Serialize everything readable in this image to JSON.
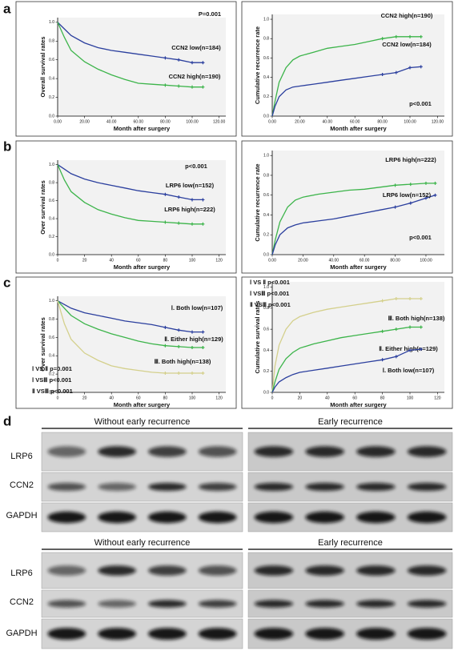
{
  "panel_labels": [
    "a",
    "b",
    "c",
    "d"
  ],
  "chart_data": [
    {
      "type": "line",
      "ylabel": "Overall survival rates",
      "xlabel": "Month after surgery",
      "annotations": [
        "P=0.001"
      ],
      "x": [
        0,
        5,
        10,
        20,
        30,
        40,
        50,
        60,
        70,
        80,
        90,
        100,
        108
      ],
      "series": [
        {
          "name": "CCN2 low(n=184)",
          "color": "#2b3f9e",
          "values": [
            1,
            0.93,
            0.86,
            0.78,
            0.73,
            0.7,
            0.68,
            0.66,
            0.64,
            0.62,
            0.6,
            0.57,
            0.57
          ]
        },
        {
          "name": "CCN2 high(n=190)",
          "color": "#3cb44a",
          "values": [
            1,
            0.84,
            0.7,
            0.58,
            0.5,
            0.44,
            0.39,
            0.35,
            0.34,
            0.33,
            0.32,
            0.31,
            0.31
          ]
        }
      ],
      "xlim": [
        0,
        125
      ],
      "xticks": [
        {
          "value": 0,
          "label": "0.00"
        },
        {
          "value": 20,
          "label": "20.00"
        },
        {
          "value": 40,
          "label": "40.00"
        },
        {
          "value": 60,
          "label": "60.00"
        },
        {
          "value": 80,
          "label": "80.00"
        },
        {
          "value": 100,
          "label": "100.00"
        },
        {
          "value": 120,
          "label": "120.00"
        }
      ],
      "ylim": [
        0,
        1.05
      ],
      "yticks": [
        {
          "value": 0,
          "label": "0.0"
        },
        {
          "value": 0.2,
          "label": "0.2"
        },
        {
          "value": 0.4,
          "label": "0.4"
        },
        {
          "value": 0.6,
          "label": "0.6"
        },
        {
          "value": 0.8,
          "label": "0.8"
        },
        {
          "value": 1,
          "label": "1.0"
        }
      ]
    },
    {
      "type": "line",
      "ylabel": "Cumulative recurrence rate",
      "xlabel": "Month after surgery",
      "annotations": [
        "p<0.001"
      ],
      "x": [
        0,
        2,
        5,
        10,
        15,
        20,
        30,
        40,
        50,
        60,
        70,
        80,
        90,
        100,
        108
      ],
      "series": [
        {
          "name": "CCN2 high(n=190)",
          "color": "#3cb44a",
          "values": [
            0,
            0.15,
            0.35,
            0.5,
            0.58,
            0.62,
            0.66,
            0.7,
            0.72,
            0.74,
            0.77,
            0.8,
            0.82,
            0.82,
            0.82
          ]
        },
        {
          "name": "CCN2 low(n=184)",
          "color": "#2b3f9e",
          "values": [
            0,
            0.1,
            0.2,
            0.27,
            0.3,
            0.31,
            0.33,
            0.35,
            0.37,
            0.39,
            0.41,
            0.43,
            0.45,
            0.5,
            0.51
          ]
        }
      ],
      "xlim": [
        0,
        125
      ],
      "xticks": [
        {
          "value": 0,
          "label": "0.00"
        },
        {
          "value": 20,
          "label": "20.00"
        },
        {
          "value": 40,
          "label": "40.00"
        },
        {
          "value": 60,
          "label": "60.00"
        },
        {
          "value": 80,
          "label": "80.00"
        },
        {
          "value": 100,
          "label": "100.00"
        },
        {
          "value": 120,
          "label": "120.00"
        }
      ],
      "ylim": [
        0,
        1.05
      ],
      "yticks": [
        {
          "value": 0,
          "label": "0.0"
        },
        {
          "value": 0.2,
          "label": "0.2"
        },
        {
          "value": 0.4,
          "label": "0.4"
        },
        {
          "value": 0.6,
          "label": "0.6"
        },
        {
          "value": 0.8,
          "label": "0.8"
        },
        {
          "value": 1,
          "label": "1.0"
        }
      ]
    },
    {
      "type": "line",
      "ylabel": "Over survival rates",
      "xlabel": "Month after surgery",
      "annotations": [
        "p<0.001"
      ],
      "x": [
        0,
        5,
        10,
        20,
        30,
        40,
        50,
        60,
        70,
        80,
        90,
        100,
        108
      ],
      "series": [
        {
          "name": "LRP6 low(n=152)",
          "color": "#2b3f9e",
          "values": [
            1,
            0.95,
            0.9,
            0.84,
            0.8,
            0.77,
            0.74,
            0.71,
            0.69,
            0.67,
            0.64,
            0.61,
            0.61
          ]
        },
        {
          "name": "LRP6 high(n=222)",
          "color": "#3cb44a",
          "values": [
            1,
            0.83,
            0.7,
            0.58,
            0.5,
            0.45,
            0.41,
            0.38,
            0.37,
            0.36,
            0.35,
            0.34,
            0.34
          ]
        }
      ],
      "xlim": [
        0,
        125
      ],
      "xticks": [
        0,
        20,
        40,
        60,
        80,
        100,
        120
      ],
      "ylim": [
        0,
        1.05
      ],
      "yticks": [
        {
          "value": 0,
          "label": "0.0"
        },
        {
          "value": 0.2,
          "label": "0.2"
        },
        {
          "value": 0.4,
          "label": "0.4"
        },
        {
          "value": 0.6,
          "label": "0.6"
        },
        {
          "value": 0.8,
          "label": "0.8"
        },
        {
          "value": 1,
          "label": "1.0"
        }
      ]
    },
    {
      "type": "line",
      "ylabel": "Cumulative recurrence rate",
      "xlabel": "Month after surgery",
      "annotations": [
        "p<0.001"
      ],
      "x": [
        0,
        2,
        5,
        10,
        15,
        20,
        30,
        40,
        50,
        60,
        70,
        80,
        90,
        100,
        106
      ],
      "series": [
        {
          "name": "LRP6 high(n=222)",
          "color": "#3cb44a",
          "values": [
            0,
            0.15,
            0.33,
            0.48,
            0.55,
            0.58,
            0.61,
            0.63,
            0.65,
            0.66,
            0.68,
            0.7,
            0.71,
            0.72,
            0.72
          ]
        },
        {
          "name": "LRP6 low(n=152)",
          "color": "#2b3f9e",
          "values": [
            0,
            0.1,
            0.2,
            0.27,
            0.3,
            0.32,
            0.34,
            0.36,
            0.39,
            0.42,
            0.45,
            0.48,
            0.52,
            0.57,
            0.6
          ]
        }
      ],
      "xlim": [
        0,
        112
      ],
      "xticks": [
        {
          "value": 0,
          "label": "0.00"
        },
        {
          "value": 20,
          "label": "20.00"
        },
        {
          "value": 40,
          "label": "40.00"
        },
        {
          "value": 60,
          "label": "60.00"
        },
        {
          "value": 80,
          "label": "80.00"
        },
        {
          "value": 100,
          "label": "100.00"
        }
      ],
      "ylim": [
        0,
        1.05
      ],
      "yticks": [
        {
          "value": 0,
          "label": "0.0"
        },
        {
          "value": 0.2,
          "label": "0.2"
        },
        {
          "value": 0.4,
          "label": "0.4"
        },
        {
          "value": 0.6,
          "label": "0.6"
        },
        {
          "value": 0.8,
          "label": "0.8"
        },
        {
          "value": 1,
          "label": "1.0"
        }
      ]
    },
    {
      "type": "line",
      "ylabel": "Over survival rates",
      "xlabel": "Month after surgery",
      "annotations": [
        "Ⅰ VS Ⅱ  p=0.001",
        "Ⅰ VSⅢ  p<0.001",
        "Ⅱ VSⅢ  p<0.001"
      ],
      "x": [
        0,
        5,
        10,
        20,
        30,
        40,
        50,
        60,
        70,
        80,
        90,
        100,
        108
      ],
      "series": [
        {
          "name": "Ⅰ. Both low(n=107)",
          "color": "#2b3f9e",
          "values": [
            1,
            0.96,
            0.92,
            0.87,
            0.84,
            0.81,
            0.78,
            0.76,
            0.74,
            0.71,
            0.68,
            0.66,
            0.66
          ]
        },
        {
          "name": "Ⅱ. Either high(n=129)",
          "color": "#3cb44a",
          "values": [
            1,
            0.92,
            0.84,
            0.75,
            0.69,
            0.64,
            0.6,
            0.56,
            0.53,
            0.51,
            0.5,
            0.49,
            0.49
          ]
        },
        {
          "name": "Ⅲ. Both high(n=138)",
          "color": "#d4d08c",
          "values": [
            1,
            0.75,
            0.58,
            0.43,
            0.35,
            0.29,
            0.26,
            0.24,
            0.22,
            0.21,
            0.21,
            0.21,
            0.21
          ]
        }
      ],
      "xlim": [
        0,
        125
      ],
      "xticks": [
        0,
        20,
        40,
        60,
        80,
        100,
        120
      ],
      "ylim": [
        0,
        1.05
      ],
      "yticks": [
        {
          "value": 0,
          "label": "0.0"
        },
        {
          "value": 0.2,
          "label": "0.2"
        },
        {
          "value": 0.4,
          "label": "0.4"
        },
        {
          "value": 0.6,
          "label": "0.6"
        },
        {
          "value": 0.8,
          "label": "0.8"
        },
        {
          "value": 1,
          "label": "1.0"
        }
      ]
    },
    {
      "type": "line",
      "ylabel": "Cumulative survival rates",
      "xlabel": "Month after surgery",
      "annotations": [
        "Ⅰ VS Ⅱ  p<0.001",
        "Ⅰ VSⅢ  p<0.001",
        "Ⅱ VSⅢ  p<0.001"
      ],
      "x": [
        0,
        2,
        5,
        10,
        15,
        20,
        30,
        40,
        50,
        60,
        70,
        80,
        90,
        100,
        108
      ],
      "series": [
        {
          "name": "Ⅲ. Both high(n=138)",
          "color": "#d4d08c",
          "values": [
            0,
            0.25,
            0.45,
            0.6,
            0.68,
            0.72,
            0.76,
            0.79,
            0.81,
            0.83,
            0.85,
            0.87,
            0.89,
            0.89,
            0.89
          ]
        },
        {
          "name": "Ⅱ. Either high(n=129)",
          "color": "#3cb44a",
          "values": [
            0,
            0.1,
            0.22,
            0.32,
            0.38,
            0.42,
            0.46,
            0.49,
            0.52,
            0.54,
            0.56,
            0.58,
            0.6,
            0.62,
            0.62
          ]
        },
        {
          "name": "Ⅰ. Both low(n=107)",
          "color": "#2b3f9e",
          "values": [
            0,
            0.05,
            0.1,
            0.14,
            0.17,
            0.19,
            0.21,
            0.23,
            0.25,
            0.27,
            0.29,
            0.31,
            0.34,
            0.4,
            0.41
          ]
        }
      ],
      "xlim": [
        0,
        125
      ],
      "xticks": [
        0,
        20,
        40,
        60,
        80,
        100,
        120
      ],
      "ylim": [
        0,
        1.05
      ],
      "yticks": [
        {
          "value": 0,
          "label": "0.0"
        },
        {
          "value": 0.2,
          "label": "0.2"
        },
        {
          "value": 0.4,
          "label": "0.4"
        },
        {
          "value": 0.6,
          "label": "0.6"
        },
        {
          "value": 0.8,
          "label": "0.8"
        },
        {
          "value": 1,
          "label": "1.0"
        }
      ]
    }
  ],
  "blots": [
    {
      "groups": [
        "Without early recurrence",
        "Early recurrence"
      ],
      "rows": [
        "LRP6",
        "CCN2",
        "GAPDH"
      ]
    },
    {
      "groups": [
        "Without early recurrence",
        "Early recurrence"
      ],
      "rows": [
        "LRP6",
        "CCN2",
        "GAPDH"
      ]
    }
  ]
}
